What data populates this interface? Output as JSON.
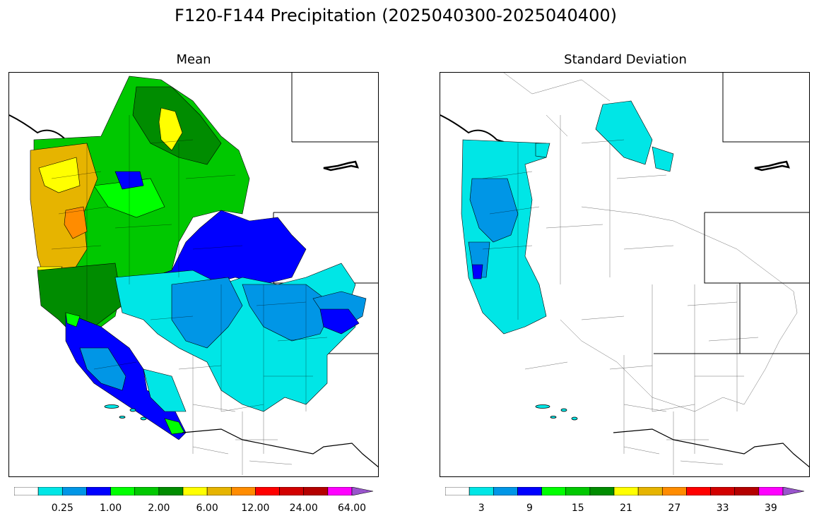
{
  "title": "F120-F144 Precipitation (2025040300-2025040400)",
  "panels": [
    {
      "title": "Mean",
      "colorbar": {
        "colors": [
          "#ffffff",
          "#00e6e6",
          "#0096e6",
          "#0000ff",
          "#00ff00",
          "#00c800",
          "#008c00",
          "#ffff00",
          "#e6b400",
          "#ff8c00",
          "#ff0000",
          "#d20000",
          "#b40000",
          "#ff00ff",
          "#9955cc"
        ],
        "labels": [
          "0.25",
          "1.00",
          "2.00",
          "6.00",
          "12.00",
          "24.00",
          "64.00"
        ]
      }
    },
    {
      "title": "Standard Deviation",
      "colorbar": {
        "colors": [
          "#ffffff",
          "#00e6e6",
          "#0096e6",
          "#0000ff",
          "#00ff00",
          "#00c800",
          "#008c00",
          "#ffff00",
          "#e6b400",
          "#ff8c00",
          "#ff0000",
          "#d20000",
          "#b40000",
          "#ff00ff",
          "#9955cc"
        ],
        "labels": [
          "3",
          "9",
          "15",
          "21",
          "27",
          "33",
          "39"
        ]
      }
    }
  ]
}
